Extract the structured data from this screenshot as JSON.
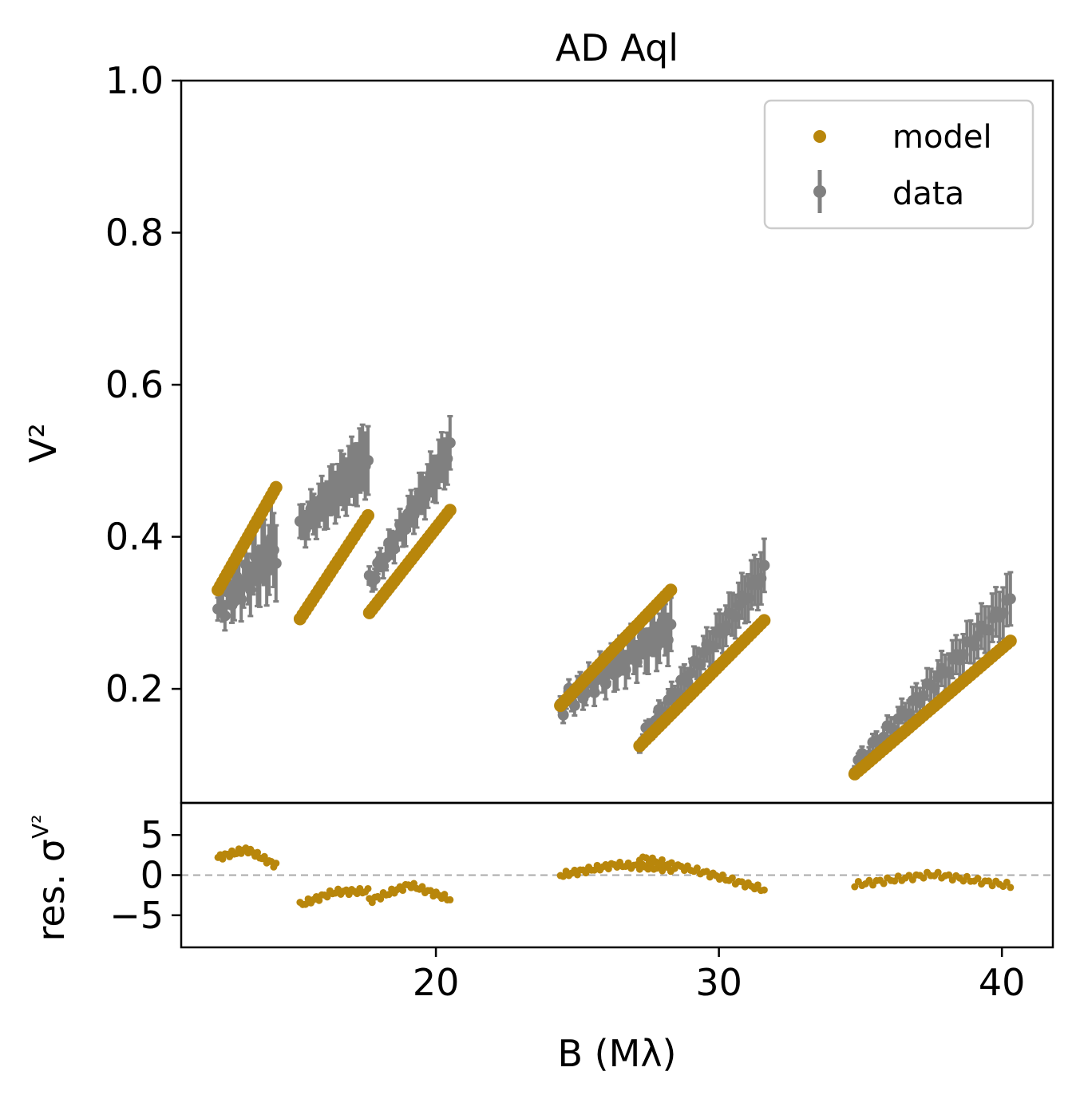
{
  "colors": {
    "model": "#b8860b",
    "data": "#808080",
    "zero_line": "#aaaaaa",
    "axes": "#000000"
  },
  "chart_data": {
    "type": "scatter",
    "title": "AD Aql",
    "xlabel": "B (Mλ)",
    "ylabel": "V²",
    "res_ylabel": "res. σ",
    "res_ylabel_sub": "V²",
    "xlim": [
      11,
      41.8
    ],
    "ylim": [
      0.05,
      1.0
    ],
    "res_ylim": [
      -9,
      9
    ],
    "xticks": [
      "20",
      "30",
      "40"
    ],
    "yticks": [
      "0.2",
      "0.4",
      "0.6",
      "0.8",
      "1.0"
    ],
    "res_yticks": [
      "5",
      "0",
      "−5"
    ],
    "legend": {
      "position": "top-right",
      "model_label": "model",
      "data_label": "data"
    },
    "groups": [
      {
        "x0": 12.3,
        "x1": 14.35,
        "n": 26,
        "model": [
          0.33,
          0.465
        ],
        "data": [
          0.305,
          0.385
        ],
        "err": [
          0.015,
          0.05
        ],
        "wiggle": 0.02,
        "res": [
          2.2,
          3.2,
          1.2
        ]
      },
      {
        "x0": 15.2,
        "x1": 17.6,
        "n": 26,
        "model": [
          0.292,
          0.428
        ],
        "data": [
          0.412,
          0.505
        ],
        "err": [
          0.022,
          0.045
        ],
        "wiggle": 0.01,
        "res": [
          -3.7,
          -2.1,
          -2.0
        ]
      },
      {
        "x0": 17.65,
        "x1": 20.5,
        "n": 30,
        "model": [
          0.3,
          0.435
        ],
        "data": [
          0.34,
          0.515
        ],
        "err": [
          0.012,
          0.035
        ],
        "wiggle": 0.01,
        "res": [
          -3.2,
          -1.2,
          -3.0
        ]
      },
      {
        "x0": 24.4,
        "x1": 28.3,
        "n": 40,
        "model": [
          0.178,
          0.33
        ],
        "data": [
          0.178,
          0.282
        ],
        "err": [
          0.01,
          0.035
        ],
        "wiggle": 0.015,
        "res": [
          0.0,
          1.3,
          0.8
        ]
      },
      {
        "x0": 27.2,
        "x1": 31.6,
        "n": 40,
        "model": [
          0.125,
          0.29
        ],
        "data": [
          0.13,
          0.355
        ],
        "err": [
          0.008,
          0.035
        ],
        "wiggle": 0.008,
        "res": [
          2.2,
          0.4,
          -1.8
        ]
      },
      {
        "x0": 34.8,
        "x1": 40.3,
        "n": 44,
        "model": [
          0.088,
          0.263
        ],
        "data": [
          0.098,
          0.315
        ],
        "err": [
          0.008,
          0.035
        ],
        "wiggle": 0.008,
        "res": [
          -1.2,
          0.1,
          -1.3
        ]
      }
    ]
  }
}
